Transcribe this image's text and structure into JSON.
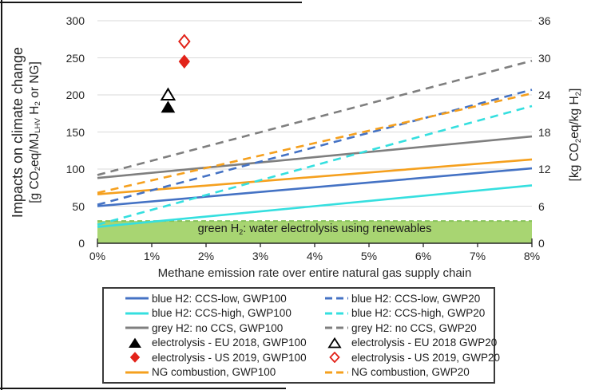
{
  "chart_data": {
    "type": "line",
    "x_axis": {
      "label": "Methane emission rate over entire natural gas supply chain",
      "tick_labels": [
        "0%",
        "1%",
        "2%",
        "3%",
        "4%",
        "5%",
        "6%",
        "7%",
        "8%"
      ],
      "min": 0,
      "max": 8,
      "unit": "percent"
    },
    "y_axis_left": {
      "title": "Impacts on climate change",
      "unit_parts": [
        {
          "text": "[g CO"
        },
        {
          "text": "2",
          "sub": true
        },
        {
          "text": "eq/MJ"
        },
        {
          "text": "LHV",
          "sub": true
        },
        {
          "text": " H"
        },
        {
          "text": "2",
          "sub": true
        },
        {
          "text": " or NG]"
        }
      ],
      "ticks": [
        300,
        250,
        200,
        150,
        100,
        50,
        0
      ],
      "min": 0,
      "max": 300
    },
    "y_axis_right": {
      "unit_parts": [
        {
          "text": "[kg CO"
        },
        {
          "text": "2",
          "sub": true
        },
        {
          "text": "eq/kg H"
        },
        {
          "text": "2",
          "sub": true
        },
        {
          "text": "]"
        }
      ],
      "ticks": [
        36,
        30,
        24,
        18,
        12,
        6,
        0
      ],
      "min": 0,
      "max": 36
    },
    "grid": {
      "on": true,
      "color": "#DADADA"
    },
    "series": [
      {
        "name": "blue H2: CCS-low, GWP100",
        "color": "#4472C4",
        "style": "solid",
        "points": [
          [
            0,
            50
          ],
          [
            8,
            101
          ]
        ]
      },
      {
        "name": "blue H2: CCS-high, GWP100",
        "color": "#35DFDF",
        "style": "solid",
        "points": [
          [
            0,
            22
          ],
          [
            8,
            78
          ]
        ]
      },
      {
        "name": "grey H2: no CCS, GWP100",
        "color": "#7F7F7F",
        "style": "solid",
        "points": [
          [
            0,
            88
          ],
          [
            8,
            144
          ]
        ]
      },
      {
        "name": "NG combustion, GWP100",
        "color": "#F5A01E",
        "style": "solid",
        "points": [
          [
            0,
            66
          ],
          [
            8,
            113
          ]
        ]
      },
      {
        "name": "blue H2: CCS-low, GWP20",
        "color": "#4472C4",
        "style": "dashed",
        "points": [
          [
            0,
            52
          ],
          [
            8,
            207
          ]
        ]
      },
      {
        "name": "blue H2: CCS-high, GWP20",
        "color": "#35DFDF",
        "style": "dashed",
        "points": [
          [
            0,
            25
          ],
          [
            8,
            185
          ]
        ]
      },
      {
        "name": "grey H2: no CCS, GWP20",
        "color": "#7F7F7F",
        "style": "dashed",
        "points": [
          [
            0,
            92
          ],
          [
            8,
            246
          ]
        ]
      },
      {
        "name": "NG combustion, GWP20",
        "color": "#F5A01E",
        "style": "dashed",
        "points": [
          [
            0,
            68
          ],
          [
            8,
            202
          ]
        ]
      }
    ],
    "point_series": [
      {
        "name": "electrolysis - EU 2018, GWP100",
        "shape": "triangle",
        "fill": "filled",
        "color": "#000000",
        "x": 1.3,
        "y": 183
      },
      {
        "name": "electrolysis - EU 2018 GWP20",
        "shape": "triangle",
        "fill": "open",
        "color": "#000000",
        "x": 1.3,
        "y": 200
      },
      {
        "name": "electrolysis - US 2019, GWP100",
        "shape": "diamond",
        "fill": "filled",
        "color": "#E2231A",
        "x": 1.6,
        "y": 245
      },
      {
        "name": "electrolysis - US 2019, GWP20",
        "shape": "diamond",
        "fill": "open",
        "color": "#E2231A",
        "x": 1.6,
        "y": 272
      }
    ],
    "band": {
      "label_parts": [
        {
          "text": "green H"
        },
        {
          "text": "2",
          "sub": true
        },
        {
          "text": ": water electrolysis using renewables"
        }
      ],
      "y_from": 0,
      "y_to": 30,
      "fill": "#A8D572",
      "edge": "#86C35A"
    },
    "legend": {
      "items": [
        {
          "label": "blue H2: CCS-low, GWP100",
          "swatch": "line",
          "color": "#4472C4"
        },
        {
          "label": "blue H2: CCS-low, GWP20",
          "swatch": "dash",
          "color": "#4472C4"
        },
        {
          "label": "blue H2: CCS-high, GWP100",
          "swatch": "line",
          "color": "#35DFDF"
        },
        {
          "label": "blue H2: CCS-high, GWP20",
          "swatch": "dash",
          "color": "#35DFDF"
        },
        {
          "label": "grey H2: no CCS, GWP100",
          "swatch": "line",
          "color": "#7F7F7F"
        },
        {
          "label": "grey H2: no CCS, GWP20",
          "swatch": "dash",
          "color": "#7F7F7F"
        },
        {
          "label": "electrolysis - EU 2018, GWP100",
          "swatch": "triangle-filled",
          "color": "#000000"
        },
        {
          "label": "electrolysis - EU 2018 GWP20",
          "swatch": "triangle-open",
          "color": "#000000"
        },
        {
          "label": "electrolysis - US 2019, GWP100",
          "swatch": "diamond-filled",
          "color": "#E2231A"
        },
        {
          "label": "electrolysis - US 2019, GWP20",
          "swatch": "diamond-open",
          "color": "#E2231A"
        },
        {
          "label": "NG combustion, GWP100",
          "swatch": "line",
          "color": "#F5A01E"
        },
        {
          "label": "NG combustion, GWP20",
          "swatch": "dash",
          "color": "#F5A01E"
        }
      ]
    }
  }
}
